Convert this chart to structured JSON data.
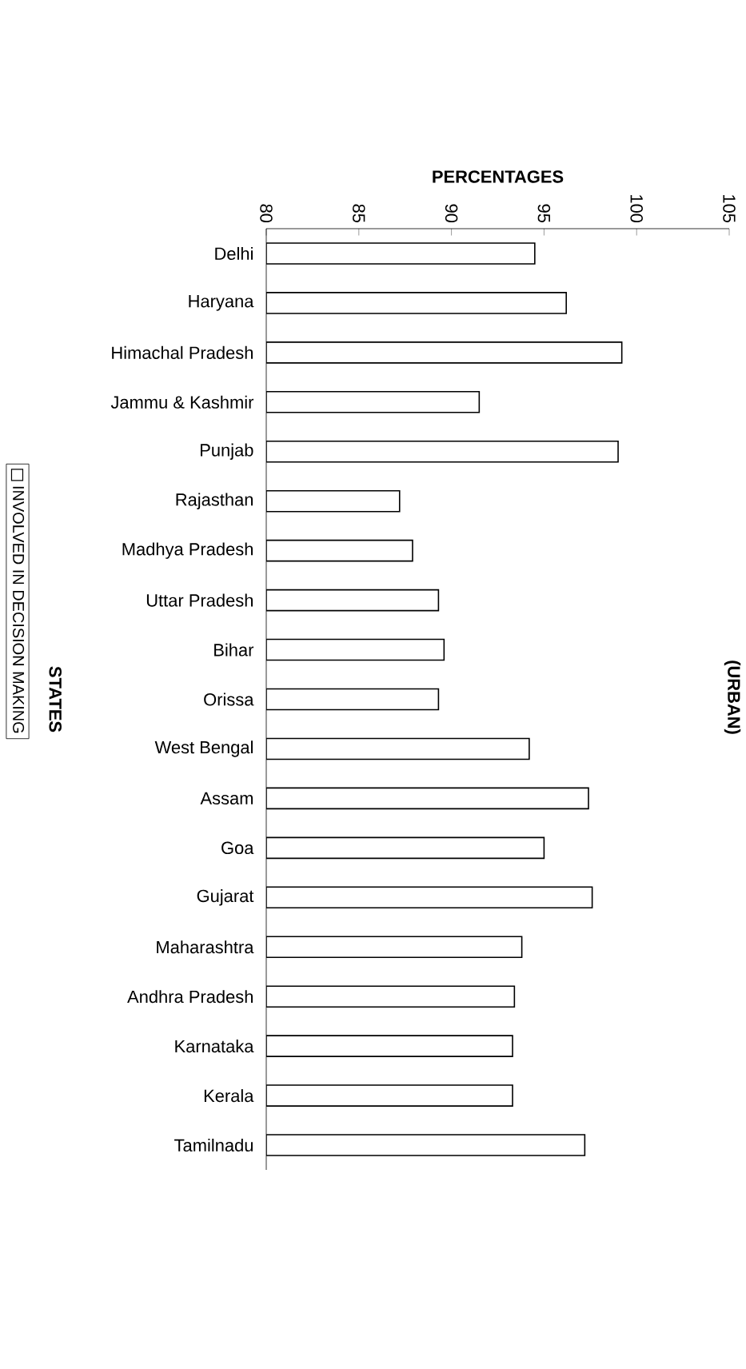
{
  "chart_data": {
    "type": "bar",
    "orientation": "horizontal",
    "title": "(URBAN)",
    "xlabel": "PERCENTAGES",
    "ylabel": "STATES",
    "categories": [
      "Delhi",
      "Haryana",
      "Himachal Pradesh",
      "Jammu & Kashmir",
      "Punjab",
      "Rajasthan",
      "Madhya Pradesh",
      "Uttar Pradesh",
      "Bihar",
      "Orissa",
      "West Bengal",
      "Assam",
      "Goa",
      "Gujarat",
      "Maharashtra",
      "Andhra Pradesh",
      "Karnataka",
      "Kerala",
      "Tamilnadu"
    ],
    "series": [
      {
        "name": "INVOLVED IN DECISION MAKING",
        "color": "#ffffff",
        "values": [
          94.5,
          96.2,
          99.2,
          91.5,
          99.0,
          87.2,
          87.9,
          89.3,
          89.6,
          89.3,
          94.2,
          97.4,
          95.0,
          97.6,
          93.8,
          93.4,
          93.3,
          93.3,
          97.2
        ]
      }
    ],
    "xlim": [
      80,
      105
    ],
    "xticks": [
      80,
      85,
      90,
      95,
      100,
      105
    ],
    "grid": false,
    "legend": "left"
  }
}
